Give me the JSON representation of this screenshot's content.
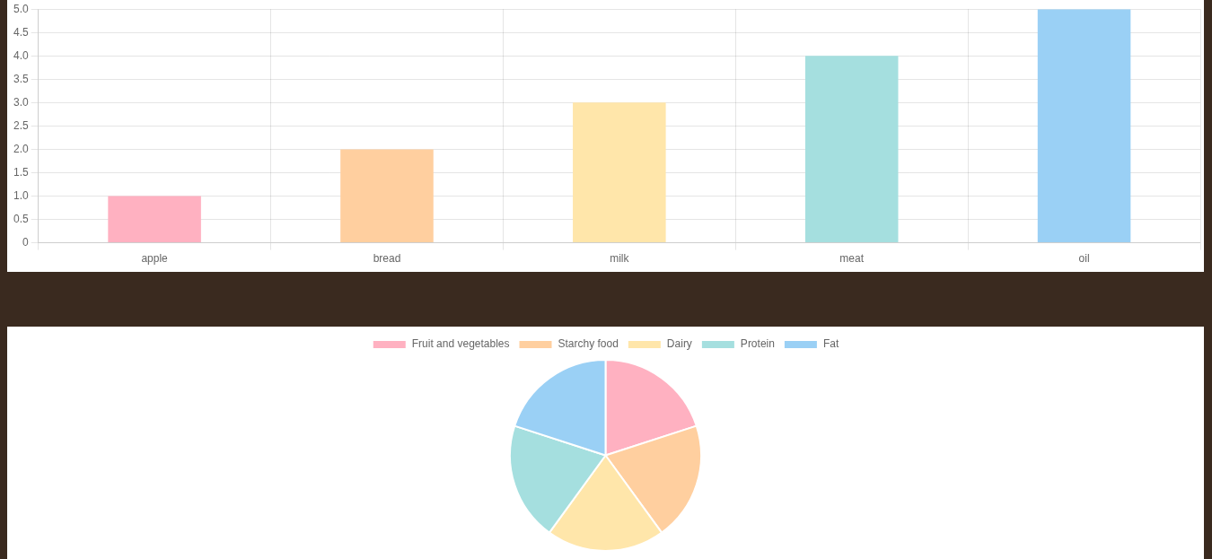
{
  "chart_data": [
    {
      "type": "bar",
      "categories": [
        "apple",
        "bread",
        "milk",
        "meat",
        "oil"
      ],
      "values": [
        1,
        2,
        3,
        4,
        5
      ],
      "colors": [
        "#ffb1c1",
        "#ffcf9f",
        "#ffe6aa",
        "#a5dfdf",
        "#9ad0f5"
      ],
      "ylim": [
        0,
        5
      ],
      "yticks": [
        0,
        0.5,
        {
          "value": 1,
          "label": "1.0"
        },
        1.5,
        {
          "value": 2,
          "label": "2.0"
        },
        2.5,
        {
          "value": 3,
          "label": "3.0"
        },
        3.5,
        {
          "value": 4,
          "label": "4.0"
        },
        4.5,
        {
          "value": 5,
          "label": "5.0"
        }
      ],
      "grid": true
    },
    {
      "type": "pie",
      "categories": [
        "Fruit and vegetables",
        "Starchy food",
        "Dairy",
        "Protein",
        "Fat"
      ],
      "values": [
        1,
        1,
        1,
        1,
        1
      ],
      "colors": [
        "#ffb1c1",
        "#ffcf9f",
        "#ffe6aa",
        "#a5dfdf",
        "#9ad0f5"
      ],
      "legend": "top"
    }
  ]
}
